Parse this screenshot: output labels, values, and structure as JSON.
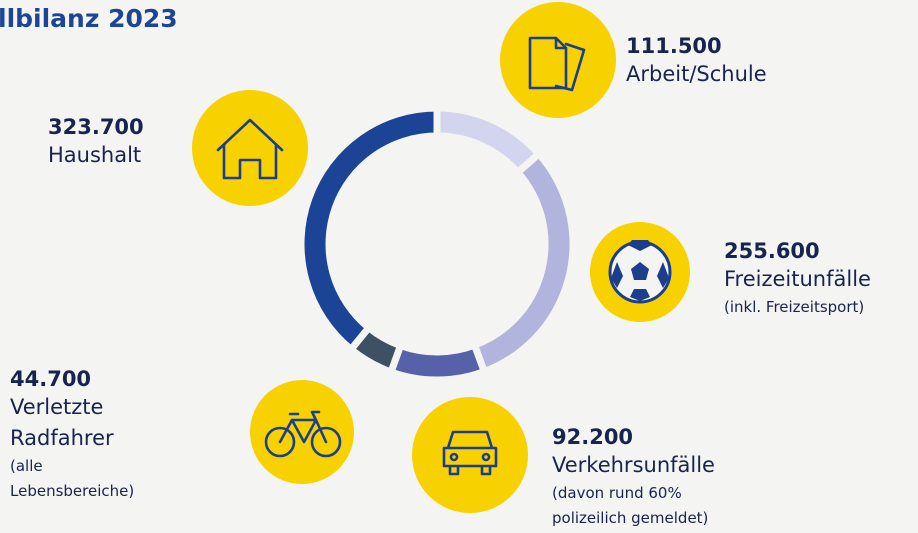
{
  "chart_data": {
    "type": "donut",
    "title": "llbilanz 2023",
    "categories": [
      "Arbeit/Schule",
      "Freizeitunfälle",
      "Verkehrsunfälle",
      "Verletzte Radfahrer",
      "Haushalt"
    ],
    "values": [
      111500,
      255600,
      92200,
      44700,
      323700
    ],
    "value_labels": [
      "111.500",
      "255.600",
      "92.200",
      "44.700",
      "323.700"
    ],
    "notes": [
      null,
      "(inkl. Freizeitsport)",
      "(davon rund 60% polizeilich gemeldet)",
      "(alle Lebensbereiche)",
      null
    ],
    "colors": [
      "#d3d5ee",
      "#b1b5dd",
      "#5661a9",
      "#3e5064",
      "#1b4496"
    ]
  }
}
